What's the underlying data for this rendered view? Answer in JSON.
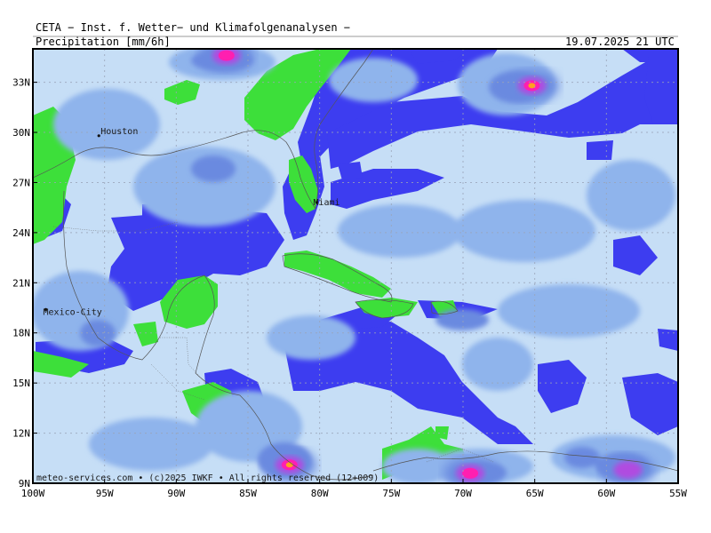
{
  "header": {
    "producer": "CETA − Inst. f. Wetter− und Klimafolgenanalysen −",
    "parameter": "Precipitation [mm/6h]",
    "valid_time": "19.07.2025 21 UTC"
  },
  "map": {
    "lon_range": [
      -100,
      -55
    ],
    "lat_range": [
      9,
      35
    ],
    "lon_ticks": [
      {
        "value": -100,
        "label": "100W"
      },
      {
        "value": -95,
        "label": "95W"
      },
      {
        "value": -90,
        "label": "90W"
      },
      {
        "value": -85,
        "label": "85W"
      },
      {
        "value": -80,
        "label": "80W"
      },
      {
        "value": -75,
        "label": "75W"
      },
      {
        "value": -70,
        "label": "70W"
      },
      {
        "value": -65,
        "label": "65W"
      },
      {
        "value": -60,
        "label": "60W"
      },
      {
        "value": -55,
        "label": "55W"
      }
    ],
    "lat_ticks": [
      {
        "value": 33,
        "label": "33N"
      },
      {
        "value": 30,
        "label": "30N"
      },
      {
        "value": 27,
        "label": "27N"
      },
      {
        "value": 24,
        "label": "24N"
      },
      {
        "value": 21,
        "label": "21N"
      },
      {
        "value": 18,
        "label": "18N"
      },
      {
        "value": 15,
        "label": "15N"
      },
      {
        "value": 12,
        "label": "12N"
      },
      {
        "value": 9,
        "label": "9N"
      }
    ],
    "cities": [
      {
        "name": "Houston",
        "lon": -95.4,
        "lat": 29.8
      },
      {
        "name": "Miami",
        "lon": -80.2,
        "lat": 25.8
      },
      {
        "name": "Mexico-City",
        "lon": -99.1,
        "lat": 19.4
      }
    ],
    "colors": {
      "land": "#3ddf3a",
      "ocean": "#3d3df0",
      "precip_light": "#c6def6",
      "precip_medium": "#8fb4ec",
      "precip_heavy": "#6a8ae0",
      "precip_intense": "#b04ce0",
      "precip_extreme": "#ff1fb0",
      "precip_peak": "#ffa020"
    },
    "precip_maxima": [
      {
        "lon": -65.2,
        "lat": 32.8,
        "level": "peak"
      },
      {
        "lon": -82.1,
        "lat": 10.1,
        "level": "peak"
      },
      {
        "lon": -86.5,
        "lat": 34.6,
        "level": "extreme"
      },
      {
        "lon": -69.5,
        "lat": 9.6,
        "level": "extreme"
      },
      {
        "lon": -58.5,
        "lat": 9.8,
        "level": "intense"
      }
    ],
    "credit": "meteo-services.com • (c)2025 IWKF • All rights reserved (12+009)"
  }
}
